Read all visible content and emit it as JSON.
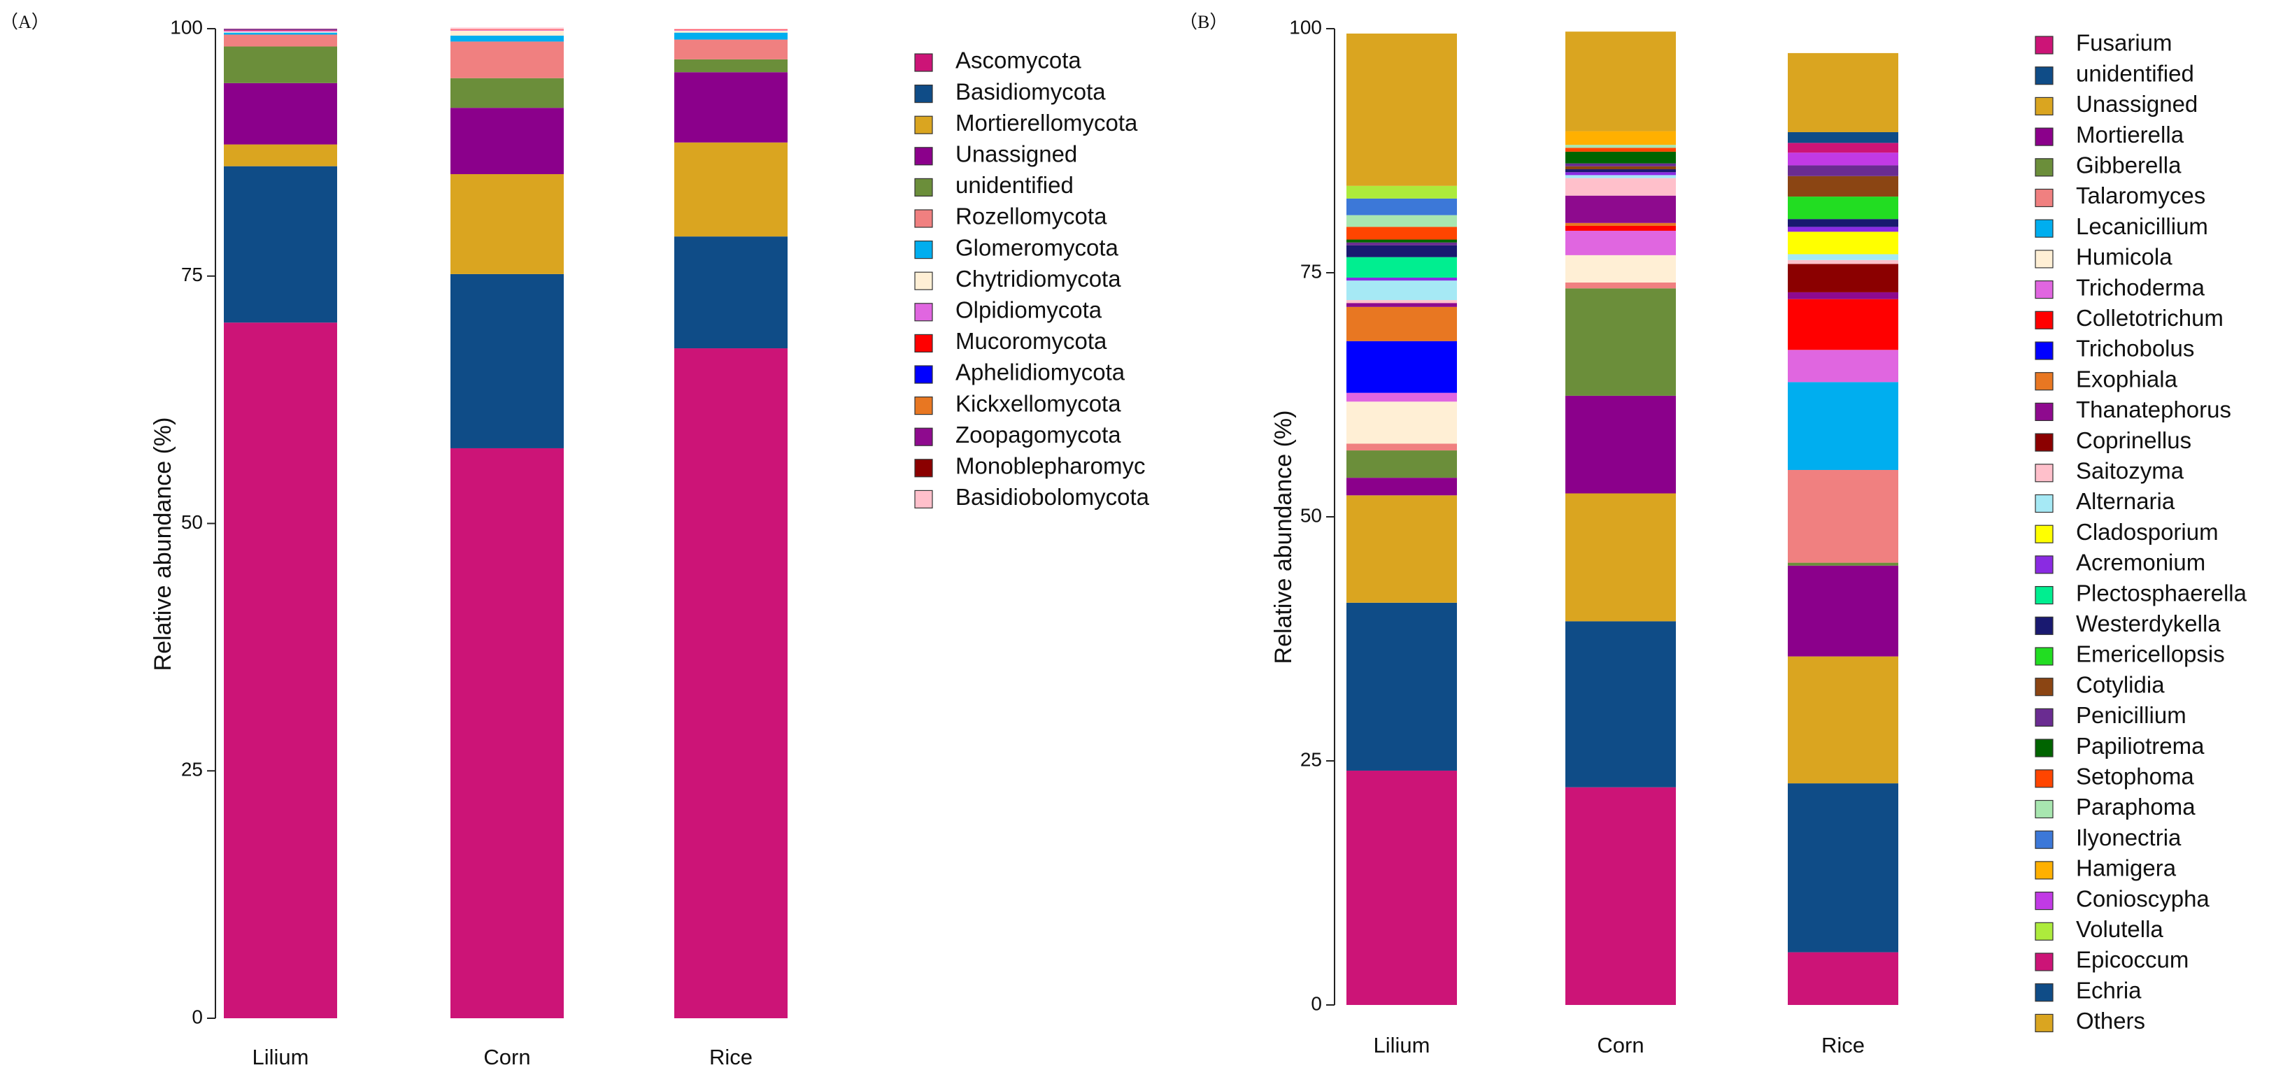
{
  "chart_data": [
    {
      "type": "bar",
      "stacked": true,
      "panel_label": "（A）",
      "categories": [
        "Lilium",
        "Corn",
        "Rice"
      ],
      "ylabel": "Relative abundance (%)",
      "xlabel": "",
      "ylim": [
        0,
        100
      ],
      "yticks": [
        "0",
        "25",
        "50",
        "75",
        "100"
      ],
      "legend_position": "right",
      "series": [
        {
          "name": "Ascomycota",
          "color": "#CC1477",
          "values": [
            70.3,
            57.6,
            67.7
          ]
        },
        {
          "name": "Basidiomycota",
          "color": "#0F4C87",
          "values": [
            15.8,
            17.6,
            11.3
          ]
        },
        {
          "name": "Mortierellomycota",
          "color": "#DAA520",
          "values": [
            2.2,
            10.1,
            9.5
          ]
        },
        {
          "name": "Unassigned",
          "color": "#8B008B",
          "values": [
            6.2,
            6.7,
            7.1
          ]
        },
        {
          "name": "unidentified",
          "color": "#6B8E3A",
          "values": [
            3.7,
            3.0,
            1.3
          ]
        },
        {
          "name": "Rozellomycota",
          "color": "#F08080",
          "values": [
            1.2,
            3.7,
            2.0
          ]
        },
        {
          "name": "Glomeromycota",
          "color": "#00AEEF",
          "values": [
            0.2,
            0.6,
            0.7
          ]
        },
        {
          "name": "Chytridiomycota",
          "color": "#FFEFD5",
          "values": [
            0.1,
            0.5,
            0.2
          ]
        },
        {
          "name": "Olpidiomycota",
          "color": "#E066E0",
          "values": [
            0.1,
            0.05,
            0.05
          ]
        },
        {
          "name": "Mucoromycota",
          "color": "#FF0000",
          "values": [
            0.05,
            0.05,
            0.05
          ]
        },
        {
          "name": "Aphelidiomycota",
          "color": "#0000FF",
          "values": [
            0.05,
            0.0,
            0.0
          ]
        },
        {
          "name": "Kickxellomycota",
          "color": "#E87722",
          "values": [
            0.05,
            0.0,
            0.0
          ]
        },
        {
          "name": "Zoopagomycota",
          "color": "#8E0A8E",
          "values": [
            0.05,
            0.0,
            0.0
          ]
        },
        {
          "name": "Monoblepharomyc",
          "color": "#8B0000",
          "values": [
            0.0,
            0.0,
            0.0
          ]
        },
        {
          "name": "Basidiobolomycota",
          "color": "#FFC0CB",
          "values": [
            0.0,
            0.2,
            0.1
          ]
        }
      ]
    },
    {
      "type": "bar",
      "stacked": true,
      "panel_label": "（B）",
      "categories": [
        "Lilium",
        "Corn",
        "Rice"
      ],
      "ylabel": "Relative abundance (%)",
      "xlabel": "",
      "ylim": [
        0,
        100
      ],
      "yticks": [
        "0",
        "25",
        "50",
        "75",
        "100"
      ],
      "legend_position": "right",
      "series": [
        {
          "name": "Fusarium",
          "color": "#CC1477",
          "values": [
            24.0,
            22.3,
            5.4
          ]
        },
        {
          "name": "unidentified",
          "color": "#0F4C87",
          "values": [
            17.2,
            17.0,
            17.3
          ]
        },
        {
          "name": "Unassigned",
          "color": "#DAA520",
          "values": [
            11.0,
            13.1,
            13.0
          ]
        },
        {
          "name": "Mortierella",
          "color": "#8B008B",
          "values": [
            1.8,
            10.0,
            9.3
          ]
        },
        {
          "name": "Gibberella",
          "color": "#6B8E3A",
          "values": [
            2.8,
            11.0,
            0.3
          ]
        },
        {
          "name": "Talaromyces",
          "color": "#F08080",
          "values": [
            0.7,
            0.6,
            9.5
          ]
        },
        {
          "name": "Lecanicillium",
          "color": "#00AEEF",
          "values": [
            0.0,
            0.0,
            9.0
          ]
        },
        {
          "name": "Humicola",
          "color": "#FFEFD5",
          "values": [
            4.3,
            2.8,
            0.0
          ]
        },
        {
          "name": "Trichoderma",
          "color": "#E066E0",
          "values": [
            0.9,
            2.5,
            3.3
          ]
        },
        {
          "name": "Colletotrichum",
          "color": "#FF0000",
          "values": [
            0.0,
            0.5,
            5.2
          ]
        },
        {
          "name": "Trichobolus",
          "color": "#0000FF",
          "values": [
            5.3,
            0.0,
            0.0
          ]
        },
        {
          "name": "Exophiala",
          "color": "#E87722",
          "values": [
            3.5,
            0.3,
            0.0
          ]
        },
        {
          "name": "Thanatephorus",
          "color": "#8E0A8E",
          "values": [
            0.4,
            2.8,
            0.7
          ]
        },
        {
          "name": "Coprinellus",
          "color": "#8B0000",
          "values": [
            0.0,
            0.0,
            2.9
          ]
        },
        {
          "name": "Saitozyma",
          "color": "#FFC0CB",
          "values": [
            0.3,
            1.8,
            0.4
          ]
        },
        {
          "name": "Alternaria",
          "color": "#A6E9F5",
          "values": [
            2.0,
            0.3,
            0.6
          ]
        },
        {
          "name": "Cladosporium",
          "color": "#FFFF00",
          "values": [
            0.0,
            0.0,
            2.3
          ]
        },
        {
          "name": "Acremonium",
          "color": "#8A2BE2",
          "values": [
            0.3,
            0.3,
            0.5
          ]
        },
        {
          "name": "Plectosphaerella",
          "color": "#00EE90",
          "values": [
            2.1,
            0.0,
            0.0
          ]
        },
        {
          "name": "Westerdykella",
          "color": "#191970",
          "values": [
            1.2,
            0.3,
            0.8
          ]
        },
        {
          "name": "Emericellopsis",
          "color": "#22DD22",
          "values": [
            0.0,
            0.0,
            2.3
          ]
        },
        {
          "name": "Cotylidia",
          "color": "#8B4513",
          "values": [
            0.0,
            0.3,
            2.1
          ]
        },
        {
          "name": "Penicillium",
          "color": "#6A2C91",
          "values": [
            0.3,
            0.3,
            1.1
          ]
        },
        {
          "name": "Papiliotrema",
          "color": "#006400",
          "values": [
            0.3,
            1.2,
            0.0
          ]
        },
        {
          "name": "Setophoma",
          "color": "#FF4500",
          "values": [
            1.3,
            0.4,
            0.0
          ]
        },
        {
          "name": "Paraphoma",
          "color": "#A8E6B0",
          "values": [
            1.2,
            0.3,
            0.0
          ]
        },
        {
          "name": "Ilyonectria",
          "color": "#3C78D8",
          "values": [
            1.7,
            0.0,
            0.0
          ]
        },
        {
          "name": "Hamigera",
          "color": "#FFB000",
          "values": [
            0.0,
            1.4,
            0.0
          ]
        },
        {
          "name": "Conioscypha",
          "color": "#C13AE5",
          "values": [
            0.0,
            0.0,
            1.3
          ]
        },
        {
          "name": "Volutella",
          "color": "#ADEB3C",
          "values": [
            1.3,
            0.0,
            0.0
          ]
        },
        {
          "name": "Epicoccum",
          "color": "#CC1477",
          "values": [
            0.0,
            0.0,
            1.0
          ]
        },
        {
          "name": "Echria",
          "color": "#0F4C87",
          "values": [
            0.0,
            0.0,
            1.1
          ]
        },
        {
          "name": "Others",
          "color": "#DAA520",
          "values": [
            15.6,
            10.2,
            8.1
          ]
        }
      ]
    }
  ]
}
